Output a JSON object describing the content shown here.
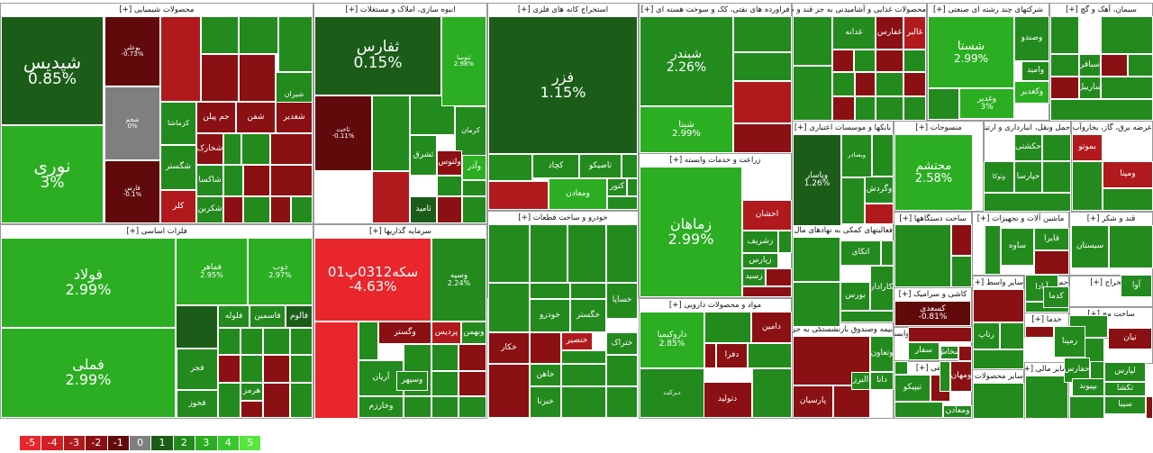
{
  "chart_data": {
    "type": "treemap",
    "title": "",
    "legend": {
      "values": [
        "-5",
        "-4",
        "-3",
        "-2",
        "-1",
        "0",
        "1",
        "2",
        "3",
        "4",
        "5"
      ],
      "colors": [
        "#e8262b",
        "#d11f23",
        "#b01a1d",
        "#8a1013",
        "#600a0c",
        "#7f7f7f",
        "#1c5c19",
        "#238a1e",
        "#2bae22",
        "#38c92d",
        "#59e63e"
      ]
    },
    "sectors": [
      {
        "name": "محصولات شیمیایی [+]"
      },
      {
        "name": "انبوه سازی، املاک و مستغلات [+]"
      },
      {
        "name": "استخراج کانه های فلزی [+]"
      },
      {
        "name": "فراورده های نفتی، کک و سوخت هسته ای [+]"
      },
      {
        "name": "محصولات غذایی و آشامیدنی به جز قند و شکر [+]"
      },
      {
        "name": "شرکتهای چند رشته ای صنعتی [+]"
      },
      {
        "name": "سیمان، آهک و گچ [+]"
      },
      {
        "name": "فلزات اساسی [+]"
      },
      {
        "name": "سرمایه گذاریها [+]"
      },
      {
        "name": "خودرو و ساخت قطعات [+]"
      },
      {
        "name": "زراعت و خدمات وابسته [+]"
      },
      {
        "name": "بانکها و موسسات اعتباری [+]"
      },
      {
        "name": "منسوجات [+]"
      },
      {
        "name": "حمل ونقل، انبارداری و ارتبا [+]"
      },
      {
        "name": "عرضه برق، گاز، بخاروآب [+]"
      },
      {
        "name": "مواد و محصولات دارویی [+]"
      },
      {
        "name": "فعالیتهای کمکی به نهادهای مال [+]"
      },
      {
        "name": "ساخت دستگاهها [+]"
      },
      {
        "name": "ماشین آلات و تجهیزات [+]"
      },
      {
        "name": "قند و شکر [+]"
      },
      {
        "name": "کاشی و سرامیک [+]"
      },
      {
        "name": "بیمه وصندوق بازنشستگی به جز [+]"
      },
      {
        "name": "رایانه و فعالیت‌های وابسته [+]"
      },
      {
        "name": "مخابرات [+]"
      },
      {
        "name": "سایر محصولات [+]"
      },
      {
        "name": "حمل و نقل [+]"
      },
      {
        "name": "استخراج [+]"
      },
      {
        "name": "سایر واسط [+]"
      },
      {
        "name": "خدما [+]"
      },
      {
        "name": "ساخت مح [+]"
      },
      {
        "name": "تولید م [+]"
      },
      {
        "name": "سایر مالی [+]"
      },
      {
        "name": "مابقی [+]"
      }
    ],
    "tiles": [
      {
        "sym": "شپدیس",
        "pct": "0.85%",
        "v": 0.85
      },
      {
        "sym": "نوری",
        "pct": "3%",
        "v": 3
      },
      {
        "sym": "بوعلی",
        "pct": "-0.73%",
        "v": -0.73
      },
      {
        "sym": "شجم",
        "pct": "0%",
        "v": 0
      },
      {
        "sym": "فارس",
        "pct": "-0.1%",
        "v": -0.1
      },
      {
        "sym": "شیران",
        "pct": "",
        "v": 2.4
      },
      {
        "sym": "کرماشا",
        "pct": "",
        "v": 2.3
      },
      {
        "sym": "جم پیلن",
        "pct": "",
        "v": -2.1
      },
      {
        "sym": "شفن",
        "pct": "",
        "v": -2.4
      },
      {
        "sym": "شغدیر",
        "pct": "",
        "v": -2.2
      },
      {
        "sym": "شگستر",
        "pct": "",
        "v": 2.2
      },
      {
        "sym": "شخارک",
        "pct": "",
        "v": -2.2
      },
      {
        "sym": "شاکسا",
        "pct": "",
        "v": 2.3
      },
      {
        "sym": "کلر",
        "pct": "",
        "v": -2.6
      },
      {
        "sym": "شکربن",
        "pct": "",
        "v": 2.1
      },
      {
        "sym": "ثفارس",
        "pct": "0.15%",
        "v": 0.15
      },
      {
        "sym": "ثاخت",
        "pct": "-0.11%",
        "v": -0.11
      },
      {
        "sym": "ثتوسا",
        "pct": "2.98%",
        "v": 2.98
      },
      {
        "sym": "کرمان",
        "pct": "",
        "v": 2.4
      },
      {
        "sym": "ثشرق",
        "pct": "",
        "v": 1.7
      },
      {
        "sym": "ولتوس",
        "pct": "",
        "v": -2.3
      },
      {
        "sym": "ثامید",
        "pct": "",
        "v": 1.4
      },
      {
        "sym": "وآذر",
        "pct": "",
        "v": 2.6
      },
      {
        "sym": "فزر",
        "pct": "1.15%",
        "v": 1.15
      },
      {
        "sym": "کچاد",
        "pct": "",
        "v": 2.4
      },
      {
        "sym": "تاصیکو",
        "pct": "",
        "v": 2.3
      },
      {
        "sym": "کنور",
        "pct": "",
        "v": 1.6
      },
      {
        "sym": "ومعادن",
        "pct": "",
        "v": 2.8
      },
      {
        "sym": "شبندر",
        "pct": "2.26%",
        "v": 2.26
      },
      {
        "sym": "شینا",
        "pct": "2.99%",
        "v": 2.99
      },
      {
        "sym": "غالبر",
        "pct": "",
        "v": -2.6
      },
      {
        "sym": "غفارس",
        "pct": "",
        "v": -2.3
      },
      {
        "sym": "غدانه",
        "pct": "",
        "v": 2.2
      },
      {
        "sym": "شستا",
        "pct": "2.99%",
        "v": 2.99
      },
      {
        "sym": "وصندو",
        "pct": "",
        "v": 2.4
      },
      {
        "sym": "وامید",
        "pct": "",
        "v": 2.3
      },
      {
        "sym": "وکغدیر",
        "pct": "",
        "v": 2.5
      },
      {
        "sym": "وغدیر",
        "pct": "3%",
        "v": 3
      },
      {
        "sym": "سباقر",
        "pct": "",
        "v": 2.3
      },
      {
        "sym": "ساربیل",
        "pct": "",
        "v": 2.2
      },
      {
        "sym": "زماهان",
        "pct": "2.99%",
        "v": 2.99
      },
      {
        "sym": "زشریف",
        "pct": "",
        "v": 2.4
      },
      {
        "sym": "زپارس",
        "pct": "",
        "v": 2.3
      },
      {
        "sym": "زسید",
        "pct": "",
        "v": 2.2
      },
      {
        "sym": "اخشان",
        "pct": "",
        "v": -2.5
      },
      {
        "sym": "فولاد",
        "pct": "2.99%",
        "v": 2.99
      },
      {
        "sym": "فملی",
        "pct": "2.99%",
        "v": 2.99
      },
      {
        "sym": "فماهر",
        "pct": "2.95%",
        "v": 2.95
      },
      {
        "sym": "ذوب",
        "pct": "2.97%",
        "v": 2.97
      },
      {
        "sym": "فلوله",
        "pct": "",
        "v": 2.3
      },
      {
        "sym": "فاسمین",
        "pct": "",
        "v": 2.1
      },
      {
        "sym": "فالوم",
        "pct": "",
        "v": 1.4
      },
      {
        "sym": "فجر",
        "pct": "",
        "v": 2.3
      },
      {
        "sym": "فخوز",
        "pct": "",
        "v": 2.1
      },
      {
        "sym": "هرمز",
        "pct": "",
        "v": 2.2
      },
      {
        "sym": "سکه0312پ01",
        "pct": "-4.63%",
        "v": -4.63
      },
      {
        "sym": "وسپه",
        "pct": "2.24%",
        "v": 2.24
      },
      {
        "sym": "وگستر",
        "pct": "",
        "v": -2.2
      },
      {
        "sym": "پردیس",
        "pct": "",
        "v": -2.5
      },
      {
        "sym": "وبهمن",
        "pct": "",
        "v": 2.3
      },
      {
        "sym": "آریان",
        "pct": "",
        "v": 2.4
      },
      {
        "sym": "وسپهر",
        "pct": "",
        "v": 2.2
      },
      {
        "sym": "وخارزم",
        "pct": "",
        "v": 2.1
      },
      {
        "sym": "خودرو",
        "pct": "",
        "v": 2.3
      },
      {
        "sym": "خگستر",
        "pct": "",
        "v": 2.2
      },
      {
        "sym": "خساپا",
        "pct": "",
        "v": 2.4
      },
      {
        "sym": "خکار",
        "pct": "",
        "v": -2.3
      },
      {
        "sym": "خنصیر",
        "pct": "",
        "v": -2.5
      },
      {
        "sym": "ختراک",
        "pct": "",
        "v": 2.2
      },
      {
        "sym": "خاهن",
        "pct": "",
        "v": 2.1
      },
      {
        "sym": "خبرنا",
        "pct": "",
        "v": 2.3
      },
      {
        "sym": "وپاسار",
        "pct": "1.26%",
        "v": 1.26
      },
      {
        "sym": "وگردش",
        "pct": "",
        "v": 2.3
      },
      {
        "sym": "وبصادر",
        "pct": "",
        "v": 2.2
      },
      {
        "sym": "محتشم",
        "pct": "2.58%",
        "v": 2.58
      },
      {
        "sym": "حسینا",
        "pct": "",
        "v": -2.3
      },
      {
        "sym": "حکشتی",
        "pct": "",
        "v": 2.1
      },
      {
        "sym": "حپارسا",
        "pct": "",
        "v": 2.4
      },
      {
        "sym": "وتوکا",
        "pct": "",
        "v": 2.0
      },
      {
        "sym": "ومپنا",
        "pct": "",
        "v": -2.5
      },
      {
        "sym": "بموتو",
        "pct": "",
        "v": -2.6
      },
      {
        "sym": "داروکیمیا",
        "pct": "2.85%",
        "v": 2.85
      },
      {
        "sym": "دامین",
        "pct": "",
        "v": -2.4
      },
      {
        "sym": "دفرا",
        "pct": "",
        "v": -2.2
      },
      {
        "sym": "دتولید",
        "pct": "",
        "v": -2.1
      },
      {
        "sym": "دبرکت",
        "pct": "",
        "v": 1.8
      },
      {
        "sym": "بورس",
        "pct": "",
        "v": 2.4
      },
      {
        "sym": "نکارادان",
        "pct": "",
        "v": 2.2
      },
      {
        "sym": "اتکای",
        "pct": "",
        "v": 2.3
      },
      {
        "sym": "کسعدی",
        "pct": "-0.81%",
        "v": -0.81
      },
      {
        "sym": "پارسیان",
        "pct": "",
        "v": -2.3
      },
      {
        "sym": "وتعاون",
        "pct": "",
        "v": 2.3
      },
      {
        "sym": "دانا",
        "pct": "",
        "v": 2.2
      },
      {
        "sym": "البرز",
        "pct": "",
        "v": 2.1
      },
      {
        "sym": "تیپیکو",
        "pct": "",
        "v": 2.4
      },
      {
        "sym": "ومعادن",
        "pct": "",
        "v": 2.0
      },
      {
        "sym": "ومهان",
        "pct": "",
        "v": -2.2
      },
      {
        "sym": "رتاپ",
        "pct": "",
        "v": 2.3
      },
      {
        "sym": "رمپنا",
        "pct": "",
        "v": 2.4
      },
      {
        "sym": "حفارس",
        "pct": "",
        "v": 2.2
      },
      {
        "sym": "آبادا",
        "pct": "",
        "v": 2.3
      },
      {
        "sym": "کدما",
        "pct": "",
        "v": 2.2
      },
      {
        "sym": "تیان",
        "pct": "",
        "v": -2.4
      },
      {
        "sym": "لپارس",
        "pct": "",
        "v": 2.3
      },
      {
        "sym": "آوا",
        "pct": "",
        "v": 2.1
      },
      {
        "sym": "فایرا",
        "pct": "",
        "v": 2.0
      },
      {
        "sym": "بپیوند",
        "pct": "",
        "v": 2.2
      },
      {
        "sym": "تکشا",
        "pct": "",
        "v": 2.1
      },
      {
        "sym": "سیبا",
        "pct": "",
        "v": 2.3
      },
      {
        "sym": "سفار",
        "pct": "",
        "v": 2.2
      },
      {
        "sym": "سخاش",
        "pct": "",
        "v": 2.1
      },
      {
        "sym": "سیستان",
        "pct": "",
        "v": 2.4
      },
      {
        "sym": "ساوه",
        "pct": "",
        "v": 2.2
      }
    ]
  }
}
